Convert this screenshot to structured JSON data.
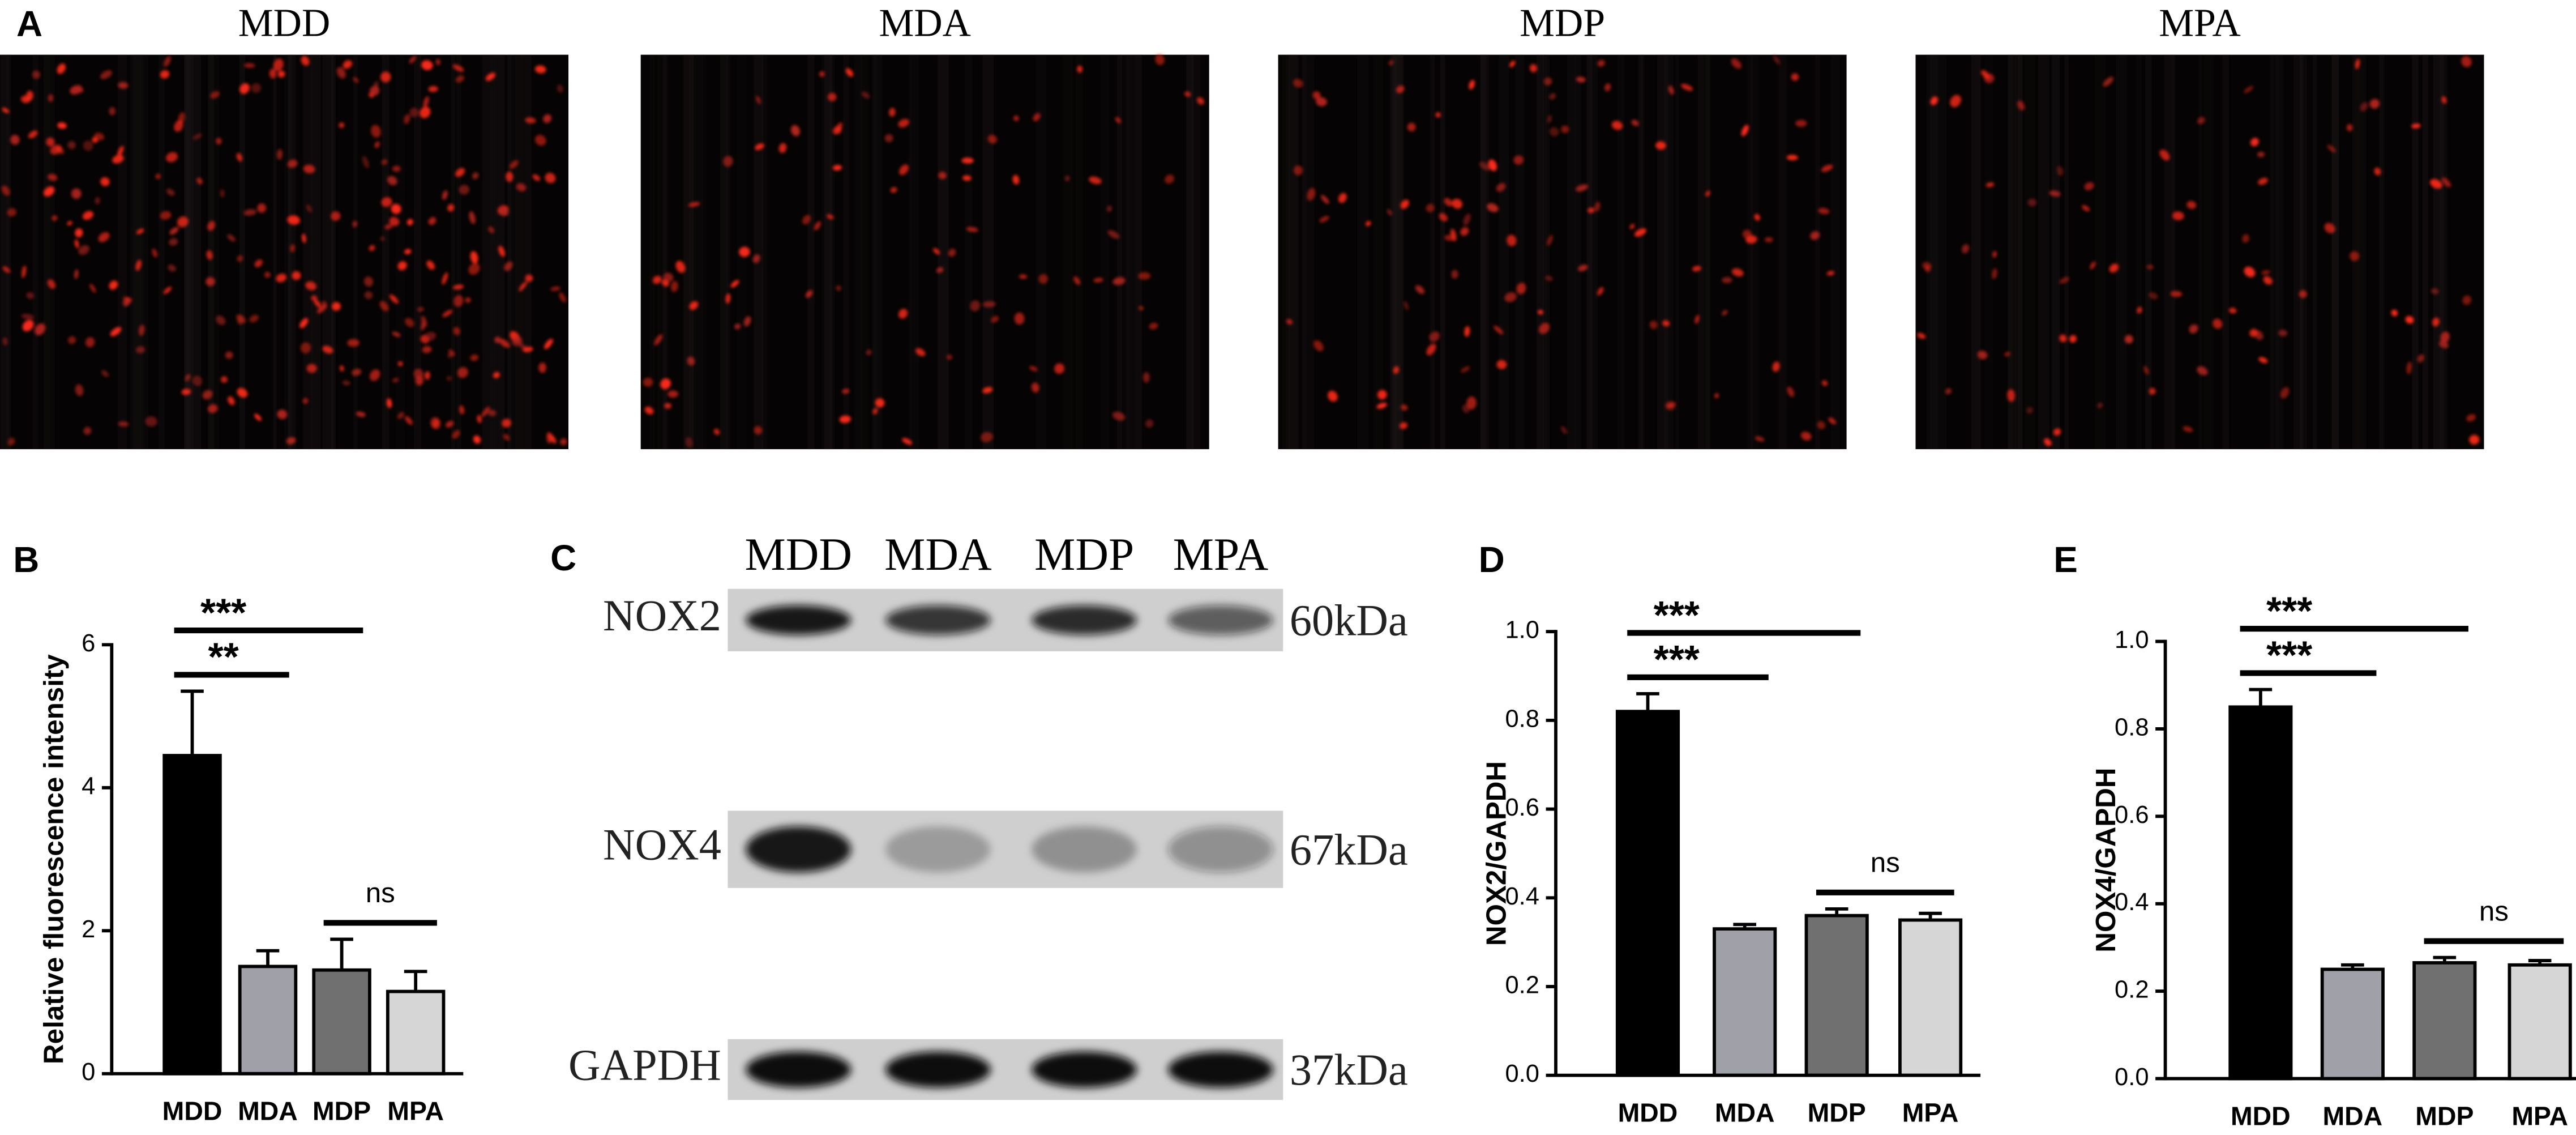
{
  "panel_a": {
    "letter": "A",
    "images": [
      "MDD",
      "MDA",
      "MDP",
      "MPA"
    ]
  },
  "panel_c": {
    "letter": "C",
    "lanes": [
      "MDD",
      "MDA",
      "MDP",
      "MPA"
    ],
    "rows": [
      {
        "protein": "NOX2",
        "size": "60kDa"
      },
      {
        "protein": "NOX4",
        "size": "67kDa"
      },
      {
        "protein": "GAPDH",
        "size": "37kDa"
      }
    ]
  },
  "chart_data": [
    {
      "type": "bar",
      "panel": "B",
      "ylabel": "Relative fluorescence intensity",
      "categories": [
        "MDD",
        "MDA",
        "MDP",
        "MPA"
      ],
      "values": [
        4.45,
        1.5,
        1.45,
        1.15
      ],
      "errors": [
        0.9,
        0.22,
        0.43,
        0.28
      ],
      "colors": [
        "#000000",
        "#a0a0a8",
        "#707070",
        "#d6d6d6"
      ],
      "ylim": [
        0,
        6
      ],
      "yticks": [
        0,
        2,
        4,
        6
      ],
      "annotations": [
        {
          "text": "ns",
          "from": "MDP",
          "to": "MPA"
        },
        {
          "text": "**",
          "from": "MDD",
          "to": "MDA"
        },
        {
          "text": "***",
          "from": "MDD",
          "to": "MDP"
        }
      ]
    },
    {
      "type": "bar",
      "panel": "D",
      "ylabel": "NOX2/GAPDH",
      "categories": [
        "MDD",
        "MDA",
        "MDP",
        "MPA"
      ],
      "values": [
        0.82,
        0.33,
        0.36,
        0.35
      ],
      "errors": [
        0.04,
        0.01,
        0.015,
        0.015
      ],
      "colors": [
        "#000000",
        "#a0a0a8",
        "#707070",
        "#d6d6d6"
      ],
      "ylim": [
        0,
        1
      ],
      "yticks": [
        {
          "value": 0,
          "label": "0.0"
        },
        0.2,
        0.4,
        0.6,
        0.8,
        {
          "value": 1,
          "label": "1.0"
        }
      ],
      "annotations": [
        {
          "text": "ns",
          "from": "MDP",
          "to": "MPA"
        },
        {
          "text": "***",
          "from": "MDD",
          "to": "MDA"
        },
        {
          "text": "***",
          "from": "MDD",
          "to": "MDP"
        }
      ]
    },
    {
      "type": "bar",
      "panel": "E",
      "ylabel": "NOX4/GAPDH",
      "categories": [
        "MDD",
        "MDA",
        "MDP",
        "MPA"
      ],
      "values": [
        0.85,
        0.25,
        0.265,
        0.26
      ],
      "errors": [
        0.04,
        0.01,
        0.012,
        0.01
      ],
      "colors": [
        "#000000",
        "#a0a0a8",
        "#707070",
        "#d6d6d6"
      ],
      "ylim": [
        0,
        1
      ],
      "yticks": [
        {
          "value": 0,
          "label": "0.0"
        },
        0.2,
        0.4,
        0.6,
        0.8,
        {
          "value": 1,
          "label": "1.0"
        }
      ],
      "annotations": [
        {
          "text": "ns",
          "from": "MDP",
          "to": "MPA"
        },
        {
          "text": "***",
          "from": "MDD",
          "to": "MDA"
        },
        {
          "text": "***",
          "from": "MDD",
          "to": "MDP"
        }
      ]
    }
  ]
}
